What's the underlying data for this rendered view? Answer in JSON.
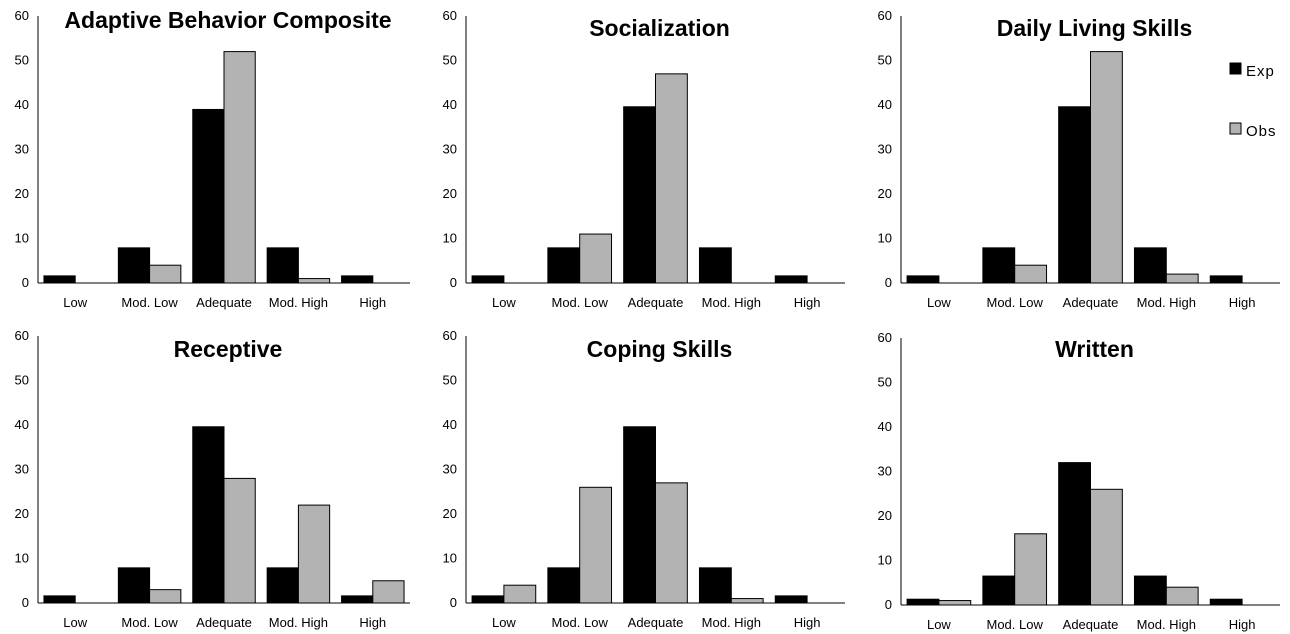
{
  "legend": {
    "items": [
      {
        "label": "Exp",
        "color": "#000000"
      },
      {
        "label": "Obs",
        "color": "#b3b3b3"
      }
    ],
    "placement": "right"
  },
  "chart_data": [
    {
      "type": "bar",
      "title": "Adaptive Behavior Composite",
      "categories": [
        "Low",
        "Mod. Low",
        "Adequate",
        "Mod. High",
        "High"
      ],
      "series": [
        {
          "name": "Exp",
          "values": [
            1.6,
            7.9,
            39,
            7.9,
            1.6
          ]
        },
        {
          "name": "Obs",
          "values": [
            0,
            4,
            52,
            1,
            0
          ]
        }
      ],
      "ylim": [
        0,
        60
      ],
      "yticks": [
        "0",
        "10",
        "20",
        "30",
        "40",
        "50",
        "60"
      ]
    },
    {
      "type": "bar",
      "title": "Socialization",
      "categories": [
        "Low",
        "Mod. Low",
        "Adequate",
        "Mod. High",
        "High"
      ],
      "series": [
        {
          "name": "Exp",
          "values": [
            1.6,
            7.9,
            39.6,
            7.9,
            1.6
          ]
        },
        {
          "name": "Obs",
          "values": [
            0,
            11,
            47,
            0,
            0
          ]
        }
      ],
      "ylim": [
        0,
        60
      ],
      "yticks": [
        "0",
        "10",
        "20",
        "30",
        "40",
        "50",
        "60"
      ]
    },
    {
      "type": "bar",
      "title": "Daily Living Skills",
      "categories": [
        "Low",
        "Mod. Low",
        "Adequate",
        "Mod. High",
        "High"
      ],
      "series": [
        {
          "name": "Exp",
          "values": [
            1.6,
            7.9,
            39.6,
            7.9,
            1.6
          ]
        },
        {
          "name": "Obs",
          "values": [
            0,
            4,
            52,
            2,
            0
          ]
        }
      ],
      "ylim": [
        0,
        60
      ],
      "yticks": [
        "0",
        "10",
        "20",
        "30",
        "40",
        "50",
        "60"
      ]
    },
    {
      "type": "bar",
      "title": "Receptive",
      "categories": [
        "Low",
        "Mod. Low",
        "Adequate",
        "Mod. High",
        "High"
      ],
      "series": [
        {
          "name": "Exp",
          "values": [
            1.6,
            7.9,
            39.6,
            7.9,
            1.6
          ]
        },
        {
          "name": "Obs",
          "values": [
            0,
            3,
            28,
            22,
            5
          ]
        }
      ],
      "ylim": [
        0,
        60
      ],
      "yticks": [
        "0",
        "10",
        "20",
        "30",
        "40",
        "50",
        "60"
      ]
    },
    {
      "type": "bar",
      "title": "Coping Skills",
      "categories": [
        "Low",
        "Mod. Low",
        "Adequate",
        "Mod. High",
        "High"
      ],
      "series": [
        {
          "name": "Exp",
          "values": [
            1.6,
            7.9,
            39.6,
            7.9,
            1.6
          ]
        },
        {
          "name": "Obs",
          "values": [
            4,
            26,
            27,
            1,
            0
          ]
        }
      ],
      "ylim": [
        0,
        60
      ],
      "yticks": [
        "0",
        "10",
        "20",
        "30",
        "40",
        "50",
        "60"
      ]
    },
    {
      "type": "bar",
      "title": "Written",
      "categories": [
        "Low",
        "Mod. Low",
        "Adequate",
        "Mod. High",
        "High"
      ],
      "series": [
        {
          "name": "Exp",
          "values": [
            1.3,
            6.5,
            32,
            6.5,
            1.3
          ]
        },
        {
          "name": "Obs",
          "values": [
            1,
            16,
            26,
            4,
            0
          ]
        }
      ],
      "ylim": [
        0,
        60
      ],
      "yticks": [
        "0",
        "10",
        "20",
        "30",
        "40",
        "50",
        "60"
      ]
    }
  ]
}
